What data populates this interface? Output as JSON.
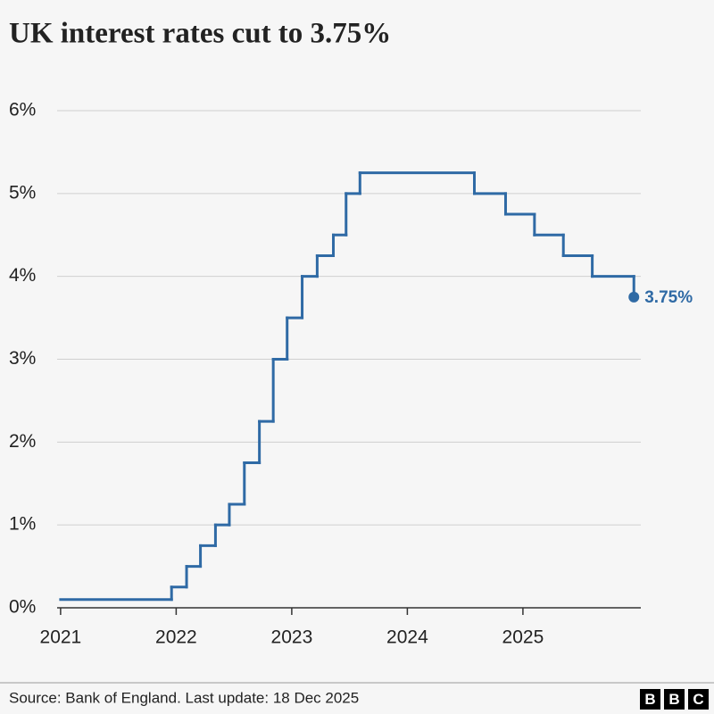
{
  "chart_data": {
    "type": "step-line",
    "title": "UK interest rates cut to 3.75%",
    "source": "Source: Bank of England. Last update: 18 Dec 2025",
    "logo": [
      "B",
      "B",
      "C"
    ],
    "x": [
      2021.0,
      2021.96,
      2022.09,
      2022.21,
      2022.34,
      2022.46,
      2022.59,
      2022.72,
      2022.84,
      2022.96,
      2023.09,
      2023.22,
      2023.36,
      2023.47,
      2023.59,
      2024.58,
      2024.85,
      2025.1,
      2025.35,
      2025.6,
      2025.96
    ],
    "values": [
      0.1,
      0.25,
      0.5,
      0.75,
      1.0,
      1.25,
      1.75,
      2.25,
      3.0,
      3.5,
      4.0,
      4.25,
      4.5,
      5.0,
      5.25,
      5.0,
      4.75,
      4.5,
      4.25,
      4.0,
      3.75
    ],
    "value_labels": [
      null,
      null,
      null,
      null,
      null,
      null,
      null,
      null,
      null,
      null,
      null,
      null,
      null,
      null,
      null,
      null,
      null,
      null,
      null,
      null,
      "3.75%"
    ],
    "color": "#2f6aa5",
    "xlim": [
      2020.97,
      2026.02
    ],
    "xticks": [
      2021,
      2022,
      2023,
      2024,
      2025
    ],
    "ylim": [
      0,
      6
    ],
    "yticks": [
      {
        "value": 0,
        "label": "0%"
      },
      {
        "value": 1,
        "label": "1%"
      },
      {
        "value": 2,
        "label": "2%"
      },
      {
        "value": 3,
        "label": "3%"
      },
      {
        "value": 4,
        "label": "4%"
      },
      {
        "value": 5,
        "label": "5%"
      },
      {
        "value": 6,
        "label": "6%"
      }
    ],
    "grid": true
  }
}
